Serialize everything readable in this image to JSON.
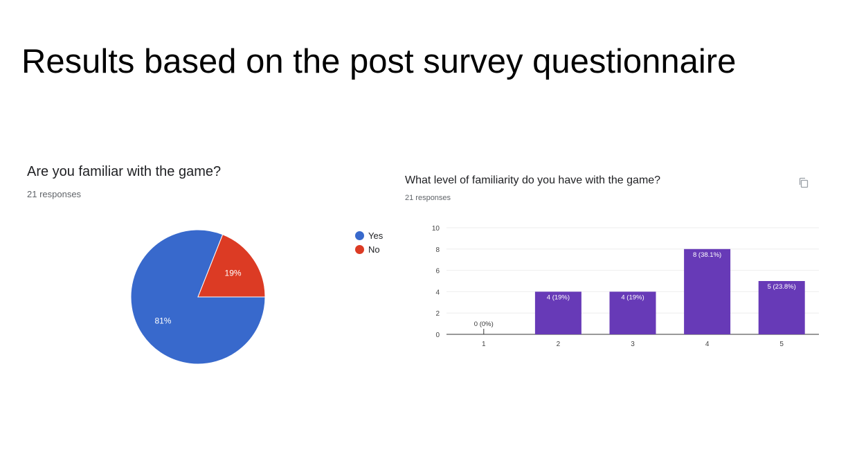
{
  "slide": {
    "title": "Results based on the post survey questionnaire"
  },
  "pie_card": {
    "question": "Are you familiar with the game?",
    "responses": "21 responses"
  },
  "bar_card": {
    "question": "What level of familiarity do you have with the game?",
    "responses": "21 responses",
    "copy_icon": "copy-icon"
  },
  "chart_data": [
    {
      "type": "pie",
      "title": "Are you familiar with the game?",
      "categories": [
        "Yes",
        "No"
      ],
      "values": [
        81,
        19
      ],
      "value_labels": [
        "81%",
        "19%"
      ],
      "colors": [
        "#3869cc",
        "#dc3b24"
      ],
      "legend": "right"
    },
    {
      "type": "bar",
      "title": "What level of familiarity do you have with the game?",
      "categories": [
        "1",
        "2",
        "3",
        "4",
        "5"
      ],
      "values": [
        0,
        4,
        4,
        8,
        5
      ],
      "value_labels": [
        "0 (0%)",
        "4 (19%)",
        "4 (19%)",
        "8 (38.1%)",
        "5 (23.8%)"
      ],
      "ylim": [
        0,
        10
      ],
      "yticks": [
        "0",
        "2",
        "4",
        "6",
        "8",
        "10"
      ],
      "color": "#673ab7",
      "grid": true
    }
  ]
}
